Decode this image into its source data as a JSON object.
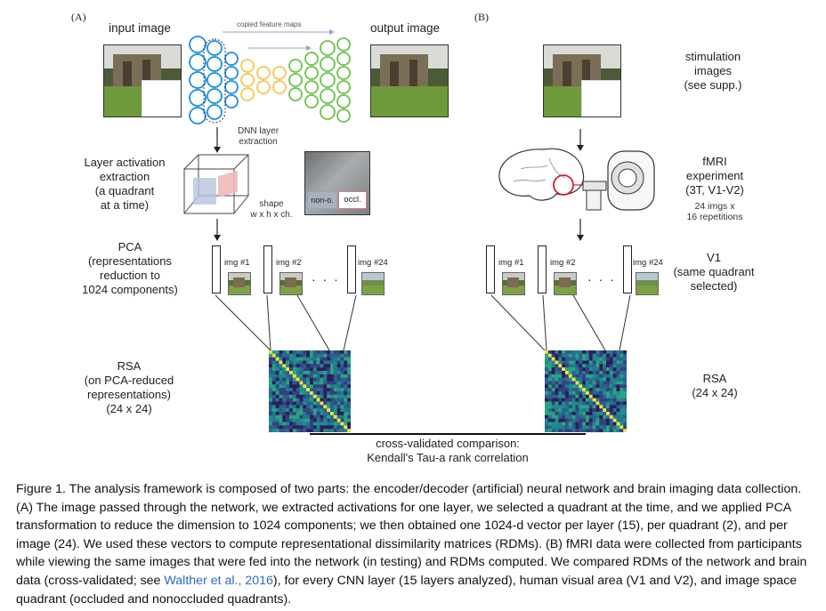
{
  "panels": {
    "a_tag": "(A)",
    "b_tag": "(B)"
  },
  "panel_a": {
    "input_image": "input image",
    "output_image": "output image",
    "copied_feature_maps": "copied feature maps",
    "dnn_layer_extraction": "DNN layer\nextraction",
    "layer_activation": "Layer activation\nextraction\n(a quadrant\nat a time)",
    "shape": "shape\nw x h x ch.",
    "non_occluded": "non-o.",
    "occluded": "occl.",
    "pca": "PCA\n(representations\nreduction to\n1024 components)",
    "rsa": "RSA\n(on PCA-reduced\nrepresentations)\n(24 x 24)",
    "img_labels": [
      "img #1",
      "img #2",
      "img #24"
    ],
    "dots": "· · ·"
  },
  "panel_b": {
    "stimulation": "stimulation\nimages\n(see supp.)",
    "fmri": "fMRI\nexperiment\n(3T, V1-V2)",
    "fmri_details": "24 imgs x\n16 repetitions",
    "v1": "V1\n(same quadrant\nselected)",
    "rsa": "RSA\n(24 x 24)",
    "img_labels": [
      "img #1",
      "img #2",
      "img #24"
    ],
    "dots": "· · ·"
  },
  "comparison": {
    "line1": "cross-validated comparison:",
    "line2": "Kendall's Tau-a rank correlation"
  },
  "caption": {
    "before_link": "Figure 1. The analysis framework is composed of two parts: the encoder/decoder (artificial) neural network and brain imaging data collection. (A) The image passed through the network, we extracted activations for one layer, we selected a quadrant at the time, and we applied PCA transformation to reduce the dimension to 1024 components; we then obtained one 1024-d vector per layer (15), per quadrant (2), and per image (24). We used these vectors to compute representational dissimilarity matrices (RDMs). (B) fMRI data were collected from participants while viewing the same images that were fed into the network (in testing) and RDMs computed. We compared RDMs of the network and brain data (cross-validated; see ",
    "link": "Walther et al., 2016",
    "after_link": "), for every CNN layer (15 layers analyzed), human visual area (V1 and V2), and image space quadrant (occluded and nonoccluded quadrants)."
  },
  "colors": {
    "encoder_blue": "#1e8fe0",
    "bottleneck_yellow": "#f2c94c",
    "decoder_green": "#6cc24a",
    "occluded_red": "#e07a7a",
    "non_occluded_blue": "#8fa6c8",
    "link": "#2a6bbf",
    "heatmap_low": "#3b2a6b",
    "heatmap_mid": "#1f8c8c",
    "heatmap_high": "#f0e442"
  }
}
